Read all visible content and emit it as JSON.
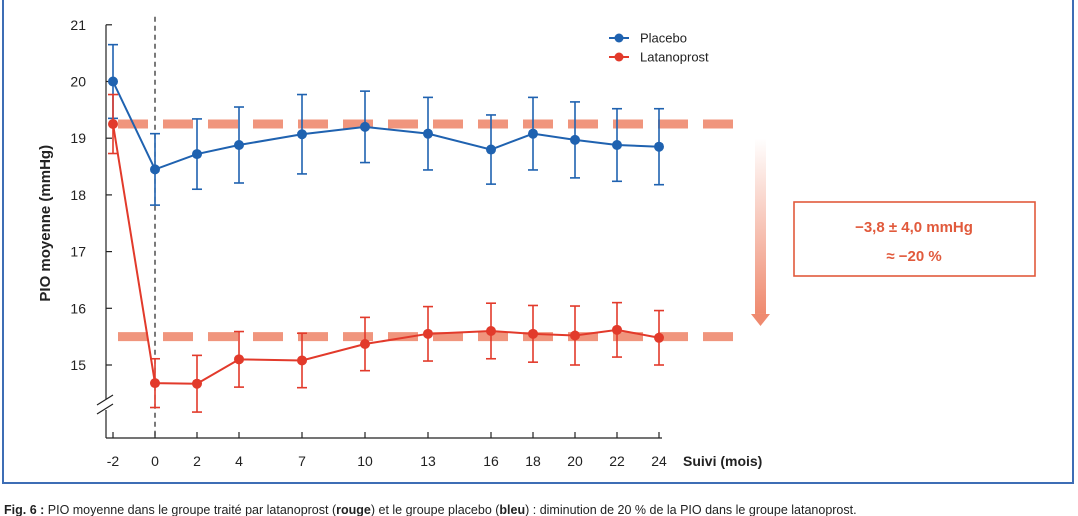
{
  "chart_data": {
    "type": "line",
    "ylabel": "PIO moyenne (mmHg)",
    "xlabel": "Suivi (mois)",
    "x": [
      -2,
      0,
      2,
      4,
      7,
      10,
      13,
      16,
      18,
      20,
      22,
      24
    ],
    "x_tick_labels": [
      "-2",
      "0",
      "2",
      "4",
      "7",
      "10",
      "13",
      "16",
      "18",
      "20",
      "22",
      "24"
    ],
    "ylim": [
      14,
      21
    ],
    "y_ticks": [
      15,
      16,
      17,
      18,
      19,
      20,
      21
    ],
    "y_axis_break": true,
    "baseline_marker_x": 0,
    "legend_position": "top-center",
    "series": [
      {
        "name": "Placebo",
        "color": "#1f62b0",
        "values": [
          20.0,
          18.45,
          18.72,
          18.88,
          19.07,
          19.2,
          19.08,
          18.8,
          19.08,
          18.97,
          18.88,
          18.85
        ],
        "error_bars": [
          0.65,
          0.63,
          0.62,
          0.67,
          0.7,
          0.63,
          0.64,
          0.61,
          0.64,
          0.67,
          0.64,
          0.67
        ]
      },
      {
        "name": "Latanoprost",
        "color": "#e23a2b",
        "values": [
          19.25,
          14.68,
          14.67,
          15.1,
          15.08,
          15.37,
          15.55,
          15.6,
          15.55,
          15.52,
          15.62,
          15.48
        ],
        "error_bars": [
          0.52,
          0.43,
          0.5,
          0.49,
          0.48,
          0.47,
          0.48,
          0.49,
          0.5,
          0.52,
          0.48,
          0.48
        ]
      }
    ],
    "reference_lines": [
      {
        "y": 19.25,
        "color": "#ef8a6f",
        "style": "dashed"
      },
      {
        "y": 15.5,
        "color": "#ef8a6f",
        "style": "dashed"
      }
    ],
    "annotation": {
      "line1": "−3,8 ± 4,0 mmHg",
      "line2": "≈ −20 %",
      "color": "#e15a3c"
    }
  },
  "caption": {
    "prefix": "Fig. 6 :",
    "text_a": " PIO moyenne dans le groupe traité par latanoprost (",
    "bold_a": "rouge",
    "text_b": ") et le groupe placebo (",
    "bold_b": "bleu",
    "text_c": ") : diminution de 20 % de la PIO dans le groupe latanoprost."
  }
}
